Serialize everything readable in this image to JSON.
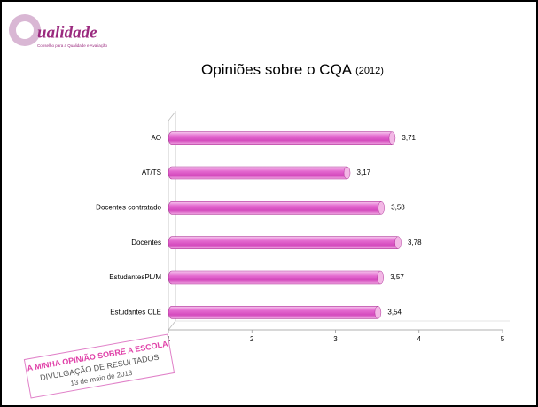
{
  "logo": {
    "text": "ualidade",
    "tagline": "Conselho para a Qualidade e Avaliação"
  },
  "stamp": {
    "line1": "A MINHA OPINIÃO SOBRE A ESCOLA",
    "line2": "DIVULGAÇÃO DE RESULTADOS",
    "line3": "13 de maio de 2013"
  },
  "chart_data": {
    "type": "bar",
    "orientation": "horizontal",
    "title": "Opiniões sobre o CQA",
    "subtitle": "(2012)",
    "categories": [
      "AO",
      "AT/TS",
      "Docentes contratado",
      "Docentes",
      "EstudantesPL/M",
      "Estudantes CLE"
    ],
    "values": [
      3.71,
      3.17,
      3.58,
      3.78,
      3.57,
      3.54
    ],
    "value_labels": [
      "3,71",
      "3,17",
      "3,58",
      "3,78",
      "3,57",
      "3,54"
    ],
    "color": "#e060c8",
    "xlim": [
      1,
      5
    ],
    "xticks": [
      1,
      2,
      3,
      4,
      5
    ],
    "grid": false
  }
}
